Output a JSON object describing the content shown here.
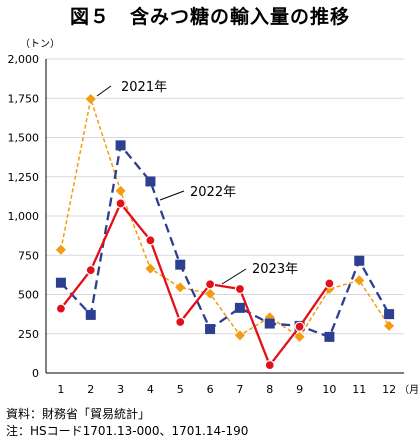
{
  "title": "図５　含みつ糖の輸入量の推移",
  "source_label": "資料：財務省「貿易統計」",
  "note_label": "注：HSコード1701.13-000、1701.14-190",
  "chart_data": {
    "type": "line",
    "title": "図５　含みつ糖の輸入量の推移",
    "ylabel": "（トン）",
    "xlabel": "（月）",
    "x": [
      1,
      2,
      3,
      4,
      5,
      6,
      7,
      8,
      9,
      10,
      11,
      12
    ],
    "x_tick_labels": [
      "1",
      "2",
      "3",
      "4",
      "5",
      "6",
      "7",
      "8",
      "9",
      "10",
      "11",
      "12"
    ],
    "ylim": [
      0,
      2000
    ],
    "y_ticks": [
      0,
      250,
      500,
      750,
      1000,
      1250,
      1500,
      1750,
      2000
    ],
    "y_tick_labels": [
      "0",
      "250",
      "500",
      "750",
      "1,000",
      "1,250",
      "1,500",
      "1,750",
      "2,000"
    ],
    "grid": true,
    "series": [
      {
        "name": "2021年",
        "color": "#f39c12",
        "line": "dotted",
        "marker": "diamond",
        "values": [
          785,
          1745,
          1160,
          665,
          545,
          505,
          240,
          355,
          230,
          535,
          590,
          300
        ]
      },
      {
        "name": "2022年",
        "color": "#2e3f8f",
        "line": "dashed",
        "marker": "square",
        "values": [
          575,
          370,
          1450,
          1220,
          690,
          280,
          415,
          315,
          300,
          230,
          715,
          375
        ]
      },
      {
        "name": "2023年",
        "color": "#e3101c",
        "line": "solid",
        "marker": "circle",
        "values": [
          410,
          655,
          1080,
          845,
          325,
          565,
          535,
          50,
          295,
          570,
          null,
          null
        ]
      }
    ]
  }
}
